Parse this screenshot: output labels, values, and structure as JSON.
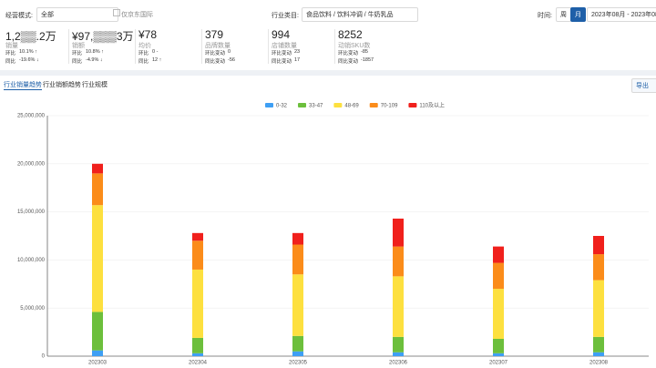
{
  "filters": {
    "mode_label": "经营模式:",
    "mode_value": "全部",
    "checkbox": "仅京东国际",
    "category_label": "行业类目:",
    "category_value": "食品饮料 / 饮料冲调 / 牛奶乳品",
    "time_label": "时间:",
    "week": "周",
    "month": "月",
    "range": "2023年08月 - 2023年08月"
  },
  "kpis": [
    {
      "value": "1,2▒▒.2万",
      "label": "销量",
      "rows": [
        [
          "环比",
          "10.1% ↑"
        ],
        [
          "同比",
          "-19.6% ↓"
        ]
      ]
    },
    {
      "value": "¥97,▒▒▒3万",
      "label": "销额",
      "rows": [
        [
          "环比",
          "10.8% ↑"
        ],
        [
          "同比",
          "-4.9% ↓"
        ]
      ]
    },
    {
      "value": "¥78",
      "label": "均价",
      "rows": [
        [
          "环比",
          "0 -"
        ],
        [
          "同比",
          "12 ↑"
        ]
      ]
    },
    {
      "value": "379",
      "label": "品牌数量",
      "rows": [
        [
          "环比变动",
          "0"
        ],
        [
          "同比变动",
          "-56"
        ]
      ]
    },
    {
      "value": "994",
      "label": "店铺数量",
      "rows": [
        [
          "环比变动",
          "23"
        ],
        [
          "同比变动",
          "17"
        ]
      ]
    },
    {
      "value": "8252",
      "label": "动销SKU数",
      "rows": [
        [
          "环比变动",
          "-85"
        ],
        [
          "同比变动",
          "-1857"
        ]
      ]
    }
  ],
  "tabs": [
    "行业销量趋势",
    "行业销额趋势",
    "行业规模"
  ],
  "export": "导出",
  "chart_data": {
    "type": "stacked_bar",
    "categories": [
      "202303",
      "202304",
      "202305",
      "202306",
      "202307",
      "202308"
    ],
    "series": [
      {
        "name": "0-32",
        "color": "#3e9ff4",
        "values": [
          600000,
          300000,
          500000,
          400000,
          300000,
          400000
        ]
      },
      {
        "name": "33-47",
        "color": "#6cbf3c",
        "values": [
          4000000,
          1600000,
          1600000,
          1600000,
          1500000,
          1600000
        ]
      },
      {
        "name": "48-69",
        "color": "#fde03f",
        "values": [
          11100000,
          7100000,
          6400000,
          6300000,
          5200000,
          5900000
        ]
      },
      {
        "name": "70-109",
        "color": "#fb8c1a",
        "values": [
          3300000,
          3000000,
          3100000,
          3100000,
          2700000,
          2700000
        ]
      },
      {
        "name": "110及以上",
        "color": "#f0201c",
        "values": [
          1000000,
          800000,
          1200000,
          2900000,
          1700000,
          1900000
        ]
      }
    ],
    "ylim": [
      0,
      25000000
    ],
    "yticks": [
      0,
      {
        "value": 5000000,
        "label": "5,000,000"
      },
      {
        "value": 10000000,
        "label": "10,000,000"
      },
      {
        "value": 15000000,
        "label": "15,000,000"
      },
      {
        "value": 20000000,
        "label": "20,000,000"
      },
      {
        "value": 25000000,
        "label": "25,000,000"
      }
    ],
    "grid": true
  }
}
